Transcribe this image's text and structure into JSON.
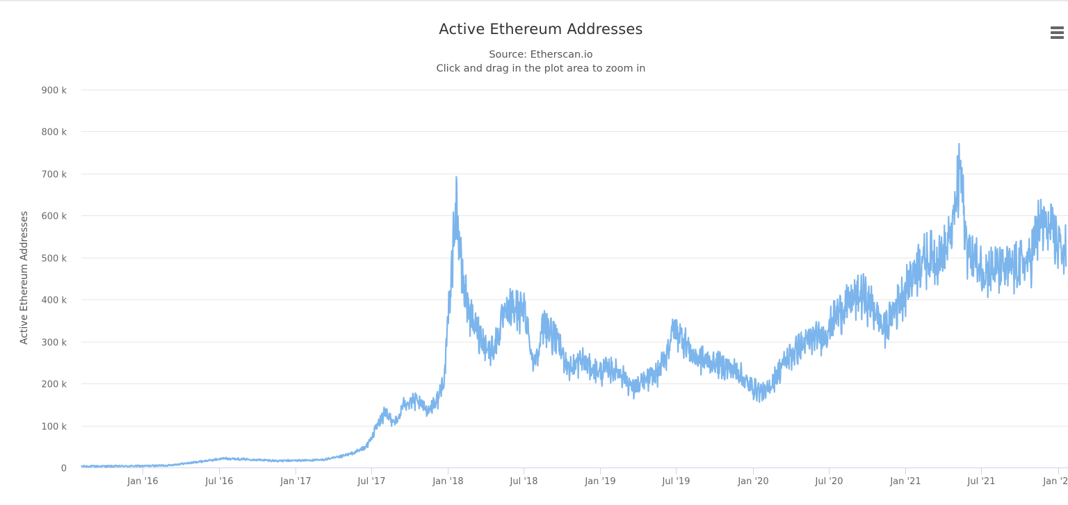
{
  "chart_data": {
    "type": "line",
    "title": "Active Ethereum Addresses",
    "subtitle_source": "Source: Etherscan.io",
    "subtitle_hint": "Click and drag in the plot area to zoom in",
    "ylabel": "Active Ethereum Addresses",
    "xlabel": "",
    "ylim": [
      0,
      900000
    ],
    "y_ticks": [
      0,
      100000,
      200000,
      300000,
      400000,
      500000,
      600000,
      700000,
      800000,
      900000
    ],
    "y_tick_labels": [
      "0",
      "100 k",
      "200 k",
      "300 k",
      "400 k",
      "500 k",
      "600 k",
      "700 k",
      "800 k",
      "900 k"
    ],
    "x_range": [
      "2015-08-07",
      "2022-01-25"
    ],
    "x_ticks": [
      "2016-01-01",
      "2016-07-01",
      "2017-01-01",
      "2017-07-01",
      "2018-01-01",
      "2018-07-01",
      "2019-01-01",
      "2019-07-01",
      "2020-01-01",
      "2020-07-01",
      "2021-01-01",
      "2021-07-01",
      "2022-01-01"
    ],
    "x_tick_labels": [
      "Jan '16",
      "Jul '16",
      "Jan '17",
      "Jul '17",
      "Jan '18",
      "Jul '18",
      "Jan '19",
      "Jul '19",
      "Jan '20",
      "Jul '20",
      "Jan '21",
      "Jul '21",
      "Jan '22"
    ],
    "grid": true,
    "legend": "none",
    "series": [
      {
        "name": "Active Ethereum Addresses",
        "color": "#7cb5ec",
        "x": [
          "2015-08-07",
          "2015-10-01",
          "2016-01-01",
          "2016-03-01",
          "2016-05-01",
          "2016-06-15",
          "2016-07-15",
          "2016-09-01",
          "2016-10-15",
          "2016-11-20",
          "2017-01-01",
          "2017-03-01",
          "2017-04-15",
          "2017-05-20",
          "2017-06-20",
          "2017-07-10",
          "2017-08-01",
          "2017-09-01",
          "2017-09-20",
          "2017-10-15",
          "2017-11-15",
          "2017-12-10",
          "2017-12-25",
          "2018-01-04",
          "2018-01-10",
          "2018-01-20",
          "2018-02-05",
          "2018-03-01",
          "2018-03-20",
          "2018-04-10",
          "2018-04-25",
          "2018-05-10",
          "2018-06-01",
          "2018-06-25",
          "2018-07-05",
          "2018-07-25",
          "2018-08-20",
          "2018-09-20",
          "2018-10-20",
          "2018-11-20",
          "2018-12-10",
          "2019-01-01",
          "2019-01-20",
          "2019-02-20",
          "2019-03-20",
          "2019-04-20",
          "2019-05-20",
          "2019-06-10",
          "2019-06-25",
          "2019-07-15",
          "2019-08-10",
          "2019-09-10",
          "2019-10-10",
          "2019-11-10",
          "2019-12-01",
          "2019-12-20",
          "2020-01-10",
          "2020-02-01",
          "2020-03-01",
          "2020-03-20",
          "2020-04-20",
          "2020-05-20",
          "2020-06-20",
          "2020-07-20",
          "2020-08-20",
          "2020-09-20",
          "2020-10-20",
          "2020-11-10",
          "2020-11-25",
          "2020-12-20",
          "2021-01-15",
          "2021-02-05",
          "2021-02-25",
          "2021-03-20",
          "2021-04-10",
          "2021-04-25",
          "2021-05-05",
          "2021-05-12",
          "2021-05-25",
          "2021-06-10",
          "2021-07-05",
          "2021-08-05",
          "2021-09-05",
          "2021-10-05",
          "2021-10-25",
          "2021-11-15",
          "2021-12-01",
          "2021-12-20",
          "2022-01-05",
          "2022-01-20"
        ],
        "y": [
          3000,
          3000,
          3500,
          5000,
          12000,
          18000,
          22000,
          20000,
          18000,
          16000,
          17000,
          18000,
          25000,
          35000,
          50000,
          90000,
          130000,
          110000,
          160000,
          160000,
          140000,
          170000,
          230000,
          400000,
          480000,
          650000,
          450000,
          350000,
          320000,
          280000,
          300000,
          350000,
          390000,
          380000,
          380000,
          250000,
          350000,
          300000,
          240000,
          260000,
          240000,
          230000,
          240000,
          230000,
          190000,
          210000,
          230000,
          280000,
          340000,
          320000,
          270000,
          260000,
          250000,
          240000,
          230000,
          200000,
          190000,
          180000,
          230000,
          260000,
          290000,
          310000,
          320000,
          370000,
          400000,
          420000,
          380000,
          330000,
          360000,
          410000,
          460000,
          500000,
          510000,
          510000,
          530000,
          590000,
          670000,
          730000,
          550000,
          510000,
          480000,
          480000,
          480000,
          490000,
          500000,
          580000,
          590000,
          560000,
          540000,
          520000
        ]
      }
    ]
  }
}
